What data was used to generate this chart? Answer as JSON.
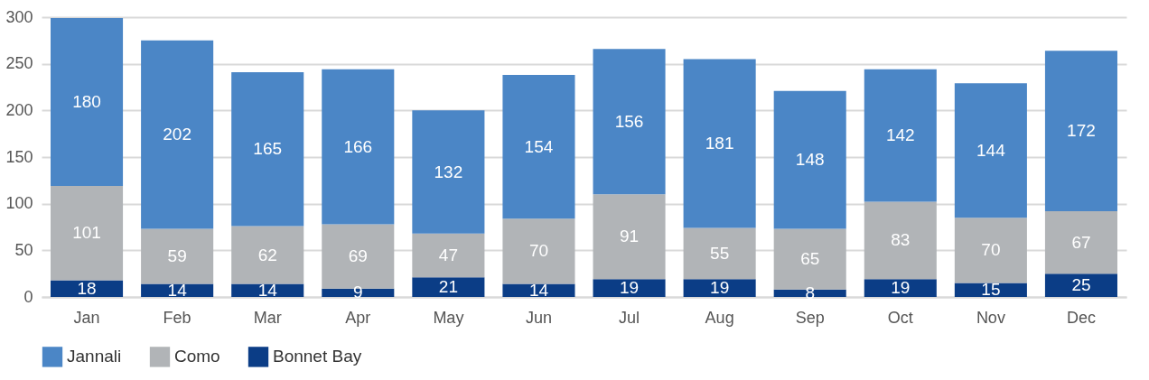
{
  "chart_data": {
    "type": "bar",
    "stacked": true,
    "data_labels": true,
    "grid": "y",
    "legend": "bottom",
    "categories": [
      "Jan",
      "Feb",
      "Mar",
      "Apr",
      "May",
      "Jun",
      "Jul",
      "Aug",
      "Sep",
      "Oct",
      "Nov",
      "Dec"
    ],
    "ylim": [
      0,
      300
    ],
    "yticks": [
      0,
      50,
      100,
      150,
      200,
      250,
      300
    ],
    "series": [
      {
        "name": "Bonnet Bay",
        "color": "#0b3d86",
        "values": [
          18,
          14,
          14,
          9,
          21,
          14,
          19,
          19,
          8,
          19,
          15,
          25
        ]
      },
      {
        "name": "Como",
        "color": "#b1b4b7",
        "values": [
          101,
          59,
          62,
          69,
          47,
          70,
          91,
          55,
          65,
          83,
          70,
          67
        ]
      },
      {
        "name": "Jannali",
        "color": "#4b86c6",
        "values": [
          180,
          202,
          165,
          166,
          132,
          154,
          156,
          181,
          148,
          142,
          144,
          172
        ]
      }
    ]
  }
}
